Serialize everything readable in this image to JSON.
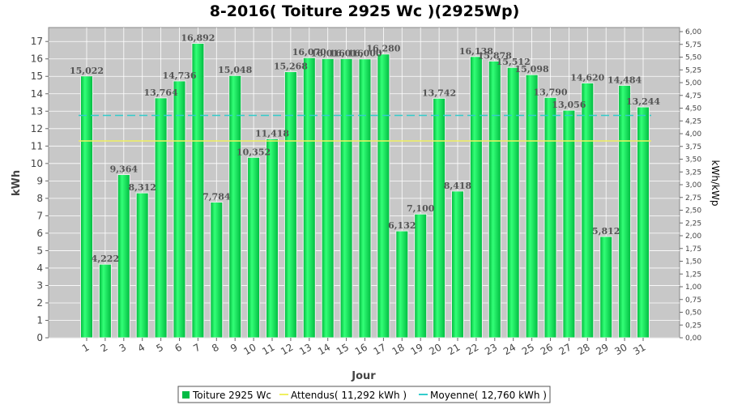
{
  "chart_data": {
    "type": "bar",
    "title": "8-2016( Toiture 2925 Wc )(2925Wp)",
    "xlabel": "Jour",
    "ylabel": "kWh",
    "y2label": "kWh/kWp",
    "ylim": [
      0,
      17.8
    ],
    "y2lim": [
      0,
      6.08
    ],
    "y_ticks": [
      0,
      1,
      2,
      3,
      4,
      5,
      6,
      7,
      8,
      9,
      10,
      11,
      12,
      13,
      14,
      15,
      16,
      17
    ],
    "y2_ticks": [
      "0,00",
      "0,25",
      "0,50",
      "0,75",
      "1,00",
      "1,25",
      "1,50",
      "1,75",
      "2,00",
      "2,25",
      "2,50",
      "2,75",
      "3,00",
      "3,25",
      "3,50",
      "3,75",
      "4,00",
      "4,25",
      "4,50",
      "4,75",
      "5,00",
      "5,25",
      "5,50",
      "5,75",
      "6,00"
    ],
    "categories": [
      "1",
      "2",
      "3",
      "4",
      "5",
      "6",
      "7",
      "8",
      "9",
      "10",
      "11",
      "12",
      "13",
      "14",
      "15",
      "16",
      "17",
      "18",
      "19",
      "20",
      "21",
      "22",
      "23",
      "24",
      "25",
      "26",
      "27",
      "28",
      "29",
      "30",
      "31"
    ],
    "series": [
      {
        "name": "Toiture 2925 Wc",
        "values": [
          15.022,
          4.222,
          9.364,
          8.312,
          13.764,
          14.736,
          16.892,
          7.784,
          15.048,
          10.352,
          11.418,
          15.268,
          16.07,
          16.016,
          16.016,
          16.0,
          16.28,
          6.132,
          7.1,
          13.742,
          8.418,
          16.138,
          15.878,
          15.512,
          15.098,
          13.79,
          13.056,
          14.62,
          5.812,
          14.484,
          13.244
        ],
        "labels": [
          "15,022",
          "4,222",
          "9,364",
          "8,312",
          "13,764",
          "14,736",
          "16,892",
          "7,784",
          "15,048",
          "10,352",
          "11,418",
          "15,268",
          "16,070",
          "16,016",
          "16,016",
          "16,000",
          "16,280",
          "6,132",
          "7,100",
          "13,742",
          "8,418",
          "16,138",
          "15,878",
          "15,512",
          "15,098",
          "13,790",
          "13,056",
          "14,620",
          "5,812",
          "14,484",
          "13,244"
        ],
        "color": "#00cc44"
      }
    ],
    "reference_lines": [
      {
        "name": "Attendus( 11,292 kWh )",
        "value": 11.292,
        "color": "#f0f060"
      },
      {
        "name": "Moyenne( 12,760 kWh )",
        "value": 12.76,
        "color": "#33cccc"
      }
    ],
    "legend_position": "bottom",
    "grid": true
  }
}
